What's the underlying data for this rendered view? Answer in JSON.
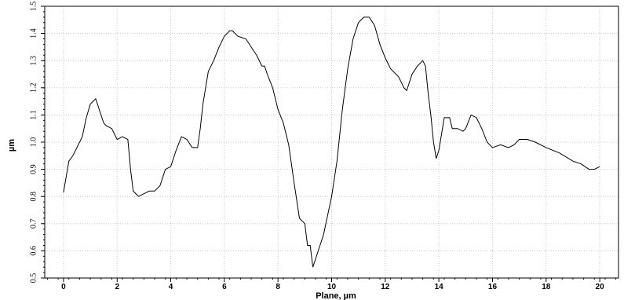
{
  "chart_data": {
    "type": "line",
    "xlabel": "Plane, µm",
    "ylabel": "µm",
    "xlim": [
      -0.7,
      20.7
    ],
    "ylim": [
      0.5,
      1.5
    ],
    "xticks": [
      "0",
      "2",
      "4",
      "6",
      "8",
      "10",
      "12",
      "14",
      "16",
      "18",
      "20"
    ],
    "yticks": [
      "0.5",
      "0.6",
      "0.7",
      "0.8",
      "0.9",
      "1.0",
      "1.1",
      "1.2",
      "1.3",
      "1.4",
      "1.5"
    ],
    "grid": true,
    "line_color": "#000000",
    "grid_color": "#c8c8c8",
    "series": [
      {
        "x": [
          0.0,
          0.2,
          0.35,
          0.5,
          0.7,
          0.85,
          1.0,
          1.1,
          1.2,
          1.3,
          1.4,
          1.5,
          1.6,
          1.8,
          1.9,
          2.0,
          2.2,
          2.4,
          2.5,
          2.6,
          2.7,
          2.8,
          3.0,
          3.2,
          3.4,
          3.6,
          3.8,
          4.0,
          4.2,
          4.4,
          4.6,
          4.8,
          5.0,
          5.1,
          5.2,
          5.4,
          5.6,
          5.8,
          6.0,
          6.2,
          6.3,
          6.5,
          6.8,
          7.0,
          7.2,
          7.4,
          7.5,
          7.6,
          7.8,
          8.0,
          8.2,
          8.4,
          8.6,
          8.8,
          9.0,
          9.1,
          9.2,
          9.3,
          9.5,
          9.7,
          10.0,
          10.2,
          10.4,
          10.6,
          10.8,
          11.0,
          11.2,
          11.4,
          11.6,
          11.8,
          12.0,
          12.2,
          12.5,
          12.7,
          12.8,
          12.9,
          13.0,
          13.2,
          13.4,
          13.5,
          13.6,
          13.7,
          13.8,
          13.9,
          14.0,
          14.2,
          14.4,
          14.5,
          14.7,
          14.9,
          15.0,
          15.2,
          15.4,
          15.6,
          15.8,
          16.0,
          16.3,
          16.6,
          16.8,
          17.0,
          17.3,
          17.6,
          18.0,
          18.5,
          19.0,
          19.3,
          19.6,
          19.8,
          20.0
        ],
        "y": [
          0.815,
          0.93,
          0.95,
          0.98,
          1.02,
          1.09,
          1.14,
          1.15,
          1.16,
          1.13,
          1.1,
          1.07,
          1.06,
          1.05,
          1.03,
          1.01,
          1.02,
          1.01,
          0.9,
          0.82,
          0.81,
          0.8,
          0.81,
          0.82,
          0.82,
          0.84,
          0.9,
          0.91,
          0.97,
          1.02,
          1.01,
          0.98,
          0.98,
          1.05,
          1.14,
          1.26,
          1.3,
          1.35,
          1.39,
          1.41,
          1.41,
          1.39,
          1.38,
          1.35,
          1.32,
          1.28,
          1.28,
          1.25,
          1.2,
          1.12,
          1.07,
          0.99,
          0.85,
          0.72,
          0.7,
          0.62,
          0.62,
          0.54,
          0.6,
          0.66,
          0.8,
          0.93,
          1.12,
          1.27,
          1.38,
          1.44,
          1.46,
          1.46,
          1.43,
          1.36,
          1.31,
          1.27,
          1.24,
          1.2,
          1.19,
          1.22,
          1.25,
          1.28,
          1.3,
          1.28,
          1.18,
          1.1,
          1.0,
          0.94,
          0.97,
          1.09,
          1.09,
          1.05,
          1.05,
          1.04,
          1.05,
          1.1,
          1.09,
          1.05,
          1.0,
          0.98,
          0.99,
          0.98,
          0.99,
          1.01,
          1.01,
          1.0,
          0.98,
          0.96,
          0.93,
          0.92,
          0.9,
          0.9,
          0.91
        ]
      }
    ]
  }
}
